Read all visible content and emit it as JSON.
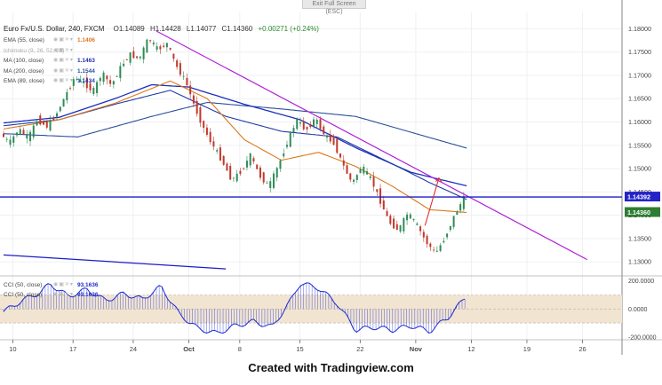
{
  "window": {
    "exit_label": "Exit Full Screen (ESC)"
  },
  "header": {
    "symbol": "Euro Fx/U.S. Dollar, 240, FXCM",
    "open": "O1.14089",
    "high": "H1.14428",
    "low": "L1.14077",
    "close": "C1.14360",
    "change": "+0.00271 (+0.24%)"
  },
  "indicators": [
    {
      "label": "EMA (55, close)",
      "value": "1.1406",
      "color": "#e0741f",
      "dim": false
    },
    {
      "label": "Ichimoku (9, 26, 52, 26)",
      "value": "",
      "color": "#999999",
      "dim": true
    },
    {
      "label": "MA (100, close)",
      "value": "1.1463",
      "color": "#1f2fb5",
      "dim": false
    },
    {
      "label": "MA (200, close)",
      "value": "1.1544",
      "color": "#1f4fa0",
      "dim": false
    },
    {
      "label": "EMA (89, close)",
      "value": "1.1434",
      "color": "#2040c0",
      "dim": false
    }
  ],
  "cci_labels": [
    {
      "label": "CCI (50, close)",
      "value": "93.1636"
    },
    {
      "label": "CCI (50, close)",
      "value": "93.1636"
    }
  ],
  "price_labels": {
    "line_price": "1.14392",
    "last_price": "1.14360",
    "line_color": "#2323c8",
    "last_color": "#2e7d32"
  },
  "footer": {
    "text": "Created with Tradingview.com"
  },
  "colors": {
    "up": "#2e8b57",
    "down": "#c0392b",
    "trendline": "#b020d8",
    "hline": "#1c1cc8",
    "ema55": "#d97a1a",
    "ma100": "#1c2fbf",
    "ma200": "#2a4f9a",
    "ema89": "#203aa8",
    "cci": "#1c2ad0",
    "cci_band": "#f1e5d2"
  },
  "chart_data": [
    {
      "type": "candlestick",
      "title": "Euro Fx/U.S. Dollar, 240, FXCM",
      "xlabel": "",
      "ylabel": "",
      "ylim": [
        1.127,
        1.1835
      ],
      "x_tick_labels": [
        "10",
        "17",
        "24",
        "Oct",
        "8",
        "15",
        "22",
        "Nov",
        "12",
        "19",
        "26"
      ],
      "y_tick_labels": [
        "1.18000",
        "1.17500",
        "1.17000",
        "1.16500",
        "1.16000",
        "1.15500",
        "1.15000",
        "1.14500",
        "1.14000",
        "1.13500",
        "1.13000"
      ],
      "y_ticks": [
        1.18,
        1.175,
        1.17,
        1.165,
        1.16,
        1.155,
        1.15,
        1.145,
        1.14,
        1.135,
        1.13
      ],
      "price_path": [
        [
          0,
          1.1575
        ],
        [
          1,
          1.1555
        ],
        [
          2,
          1.1585
        ],
        [
          3,
          1.1565
        ],
        [
          4,
          1.1605
        ],
        [
          5,
          1.159
        ],
        [
          6,
          1.1615
        ],
        [
          7,
          1.1655
        ],
        [
          8,
          1.1695
        ],
        [
          9,
          1.1685
        ],
        [
          10,
          1.1665
        ],
        [
          11,
          1.1705
        ],
        [
          12,
          1.1678
        ],
        [
          13,
          1.1718
        ],
        [
          14,
          1.1745
        ],
        [
          15,
          1.1735
        ],
        [
          16,
          1.178
        ],
        [
          17,
          1.1755
        ],
        [
          18,
          1.1768
        ],
        [
          19,
          1.172
        ],
        [
          20,
          1.1688
        ],
        [
          21,
          1.1632
        ],
        [
          22,
          1.1585
        ],
        [
          23,
          1.1548
        ],
        [
          24,
          1.1515
        ],
        [
          25,
          1.1475
        ],
        [
          26,
          1.1495
        ],
        [
          27,
          1.1528
        ],
        [
          28,
          1.1485
        ],
        [
          29,
          1.1462
        ],
        [
          30,
          1.1505
        ],
        [
          31,
          1.1558
        ],
        [
          32,
          1.1605
        ],
        [
          33,
          1.1582
        ],
        [
          34,
          1.1608
        ],
        [
          35,
          1.1572
        ],
        [
          36,
          1.1555
        ],
        [
          37,
          1.1508
        ],
        [
          38,
          1.1468
        ],
        [
          39,
          1.1505
        ],
        [
          40,
          1.1478
        ],
        [
          41,
          1.1432
        ],
        [
          42,
          1.1385
        ],
        [
          43,
          1.1368
        ],
        [
          44,
          1.1405
        ],
        [
          45,
          1.1378
        ],
        [
          46,
          1.1342
        ],
        [
          47,
          1.1318
        ],
        [
          48,
          1.1352
        ],
        [
          49,
          1.1398
        ],
        [
          50,
          1.1436
        ]
      ],
      "ema55": [
        [
          0,
          1.1585
        ],
        [
          6,
          1.1605
        ],
        [
          12,
          1.164
        ],
        [
          18,
          1.1688
        ],
        [
          22,
          1.165
        ],
        [
          26,
          1.1562
        ],
        [
          30,
          1.1518
        ],
        [
          34,
          1.1535
        ],
        [
          38,
          1.1505
        ],
        [
          42,
          1.1462
        ],
        [
          46,
          1.1412
        ],
        [
          50,
          1.1406
        ]
      ],
      "ma100": [
        [
          0,
          1.1598
        ],
        [
          6,
          1.161
        ],
        [
          12,
          1.165
        ],
        [
          16,
          1.168
        ],
        [
          20,
          1.1675
        ],
        [
          26,
          1.1638
        ],
        [
          32,
          1.1605
        ],
        [
          38,
          1.1545
        ],
        [
          44,
          1.1492
        ],
        [
          50,
          1.1463
        ]
      ],
      "ema89": [
        [
          0,
          1.1592
        ],
        [
          6,
          1.1605
        ],
        [
          12,
          1.1638
        ],
        [
          18,
          1.1668
        ],
        [
          24,
          1.1612
        ],
        [
          30,
          1.158
        ],
        [
          36,
          1.1568
        ],
        [
          42,
          1.151
        ],
        [
          46,
          1.147
        ],
        [
          50,
          1.1434
        ]
      ],
      "ma200": [
        [
          0,
          1.1575
        ],
        [
          8,
          1.1568
        ],
        [
          16,
          1.1612
        ],
        [
          22,
          1.1642
        ],
        [
          30,
          1.1628
        ],
        [
          38,
          1.1612
        ],
        [
          44,
          1.1578
        ],
        [
          50,
          1.1544
        ]
      ],
      "trendline": [
        [
          16.5,
          1.1795
        ],
        [
          63,
          1.1305
        ]
      ],
      "horizontal_line": 1.14392,
      "arrow": {
        "from": [
          45.5,
          1.1378
        ],
        "to": [
          47,
          1.148
        ]
      },
      "lower_line": [
        [
          0,
          1.1315
        ],
        [
          24,
          1.1285
        ]
      ]
    },
    {
      "type": "line",
      "title": "CCI (50, close)",
      "ylim": [
        -220,
        230
      ],
      "y_tick_labels": [
        "200.0000",
        "0.0000",
        "-200.0000"
      ],
      "y_ticks": [
        200,
        0,
        -200
      ],
      "band": [
        -100,
        100
      ],
      "values": [
        [
          0,
          -20
        ],
        [
          2,
          60
        ],
        [
          4,
          120
        ],
        [
          5,
          180
        ],
        [
          7,
          90
        ],
        [
          9,
          140
        ],
        [
          11,
          60
        ],
        [
          13,
          110
        ],
        [
          15,
          70
        ],
        [
          17,
          160
        ],
        [
          19,
          -40
        ],
        [
          21,
          -140
        ],
        [
          23,
          -175
        ],
        [
          25,
          -120
        ],
        [
          27,
          -90
        ],
        [
          29,
          -130
        ],
        [
          31,
          60
        ],
        [
          32,
          185
        ],
        [
          34,
          150
        ],
        [
          36,
          40
        ],
        [
          38,
          -150
        ],
        [
          40,
          -130
        ],
        [
          42,
          -150
        ],
        [
          44,
          -120
        ],
        [
          46,
          -160
        ],
        [
          48,
          -60
        ],
        [
          50,
          93
        ]
      ]
    }
  ]
}
